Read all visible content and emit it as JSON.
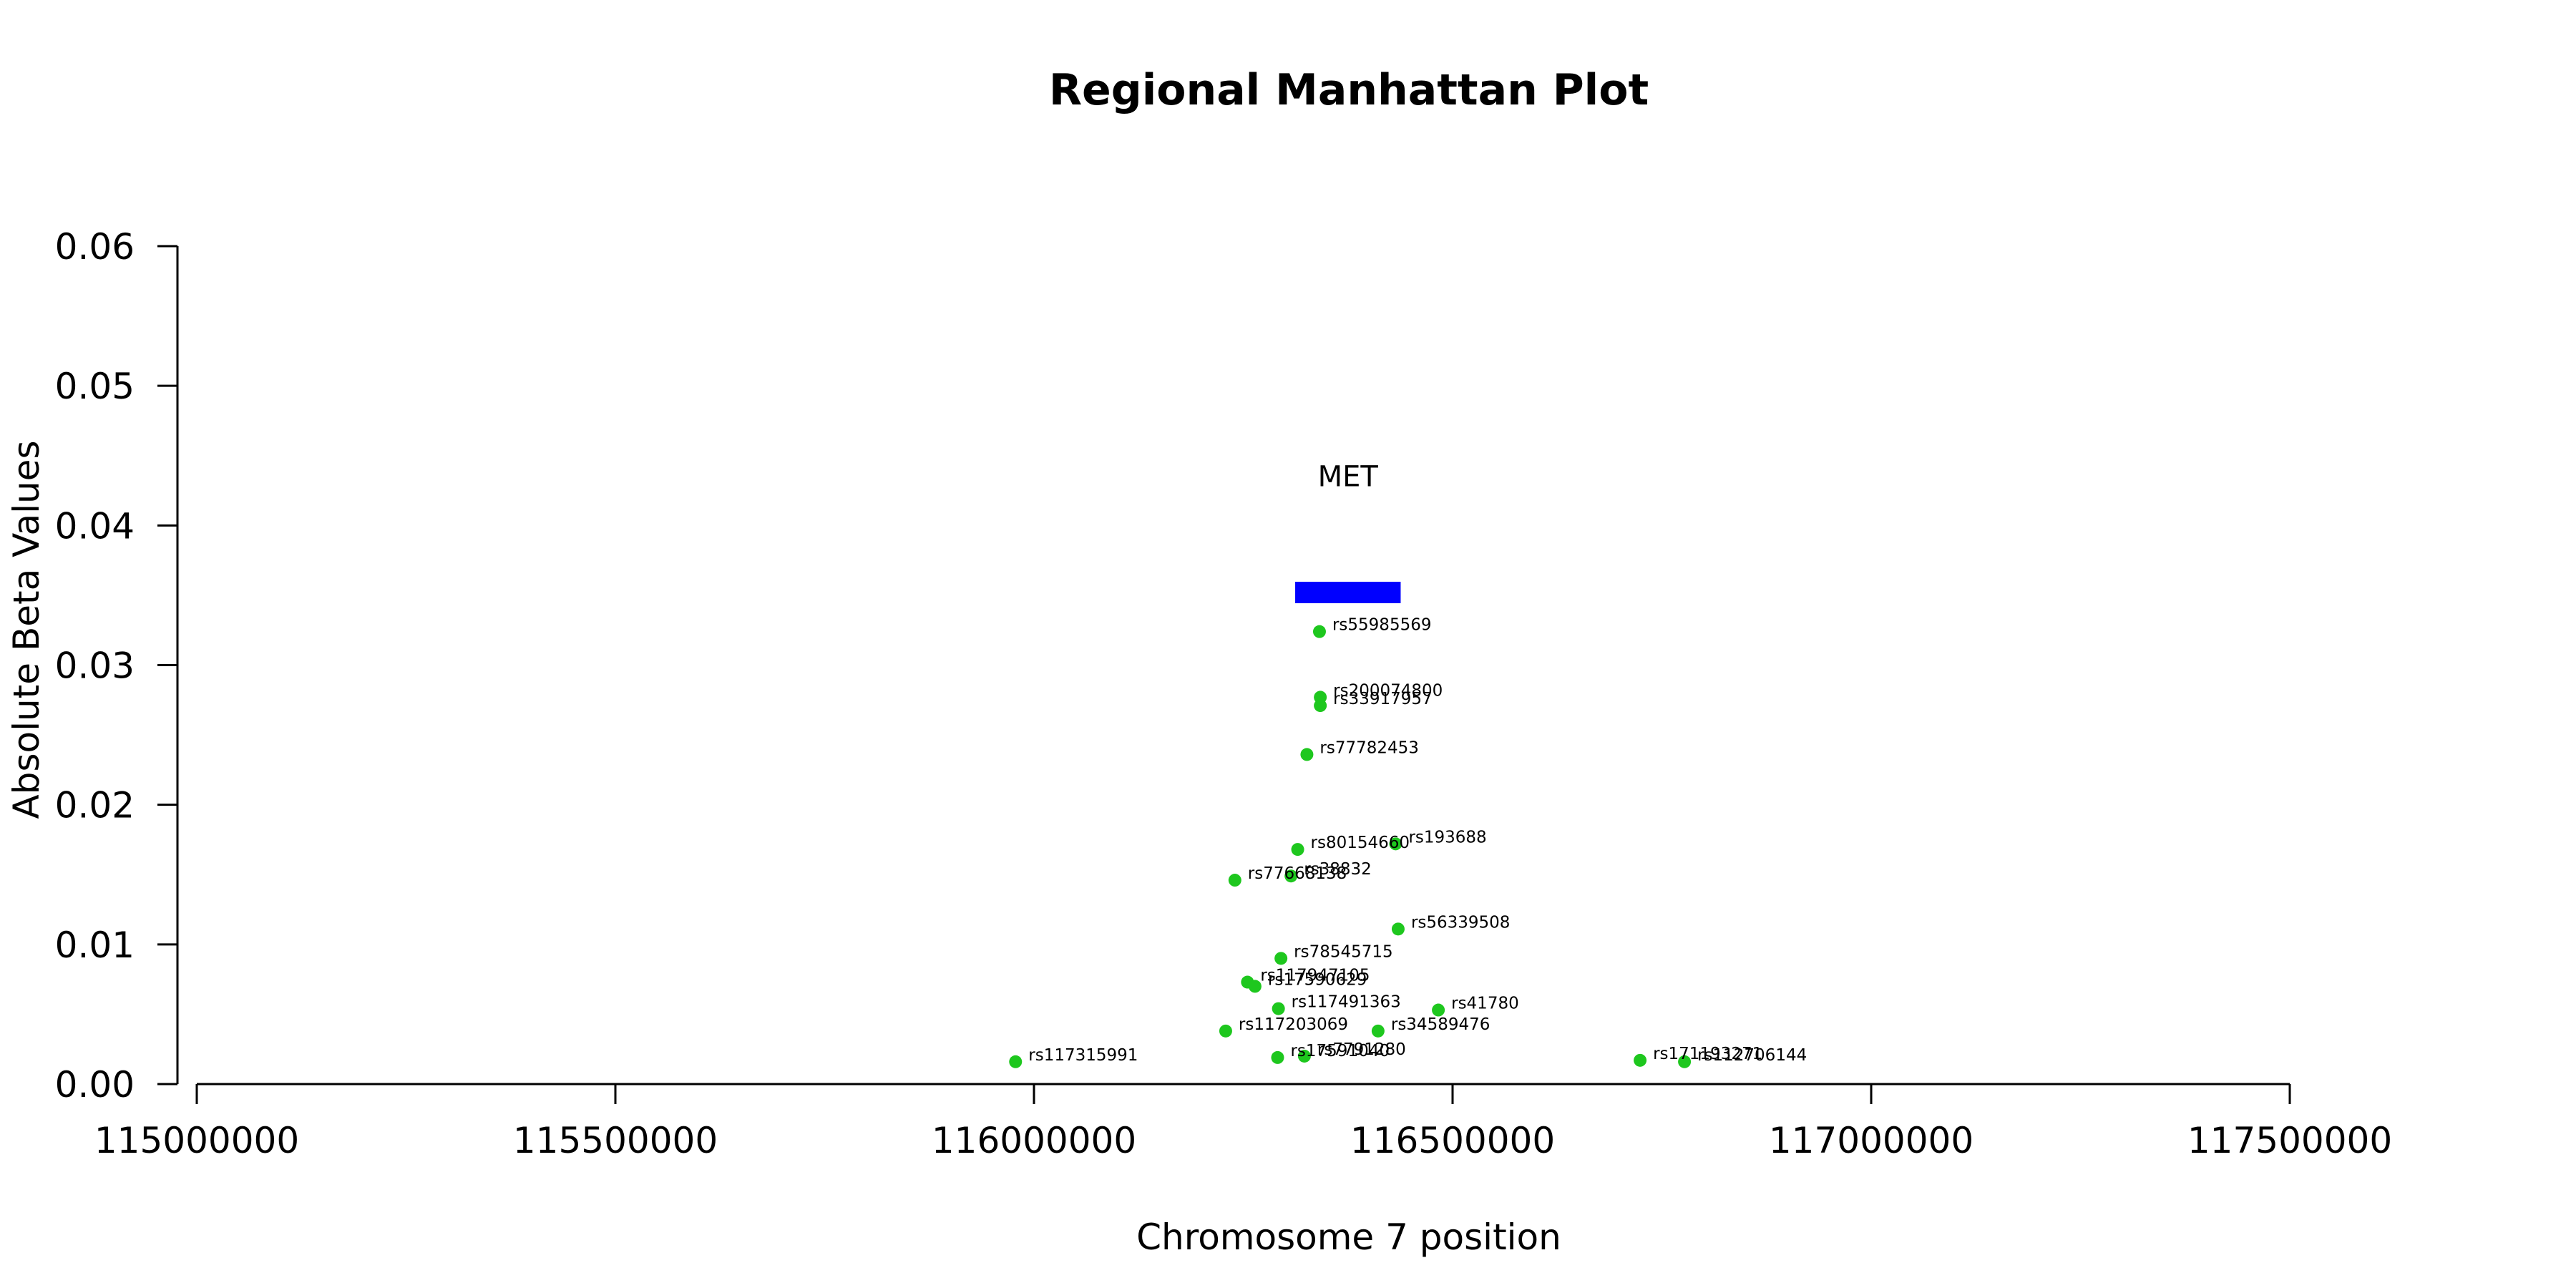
{
  "chart_data": {
    "type": "scatter",
    "title": "Regional Manhattan Plot",
    "xlabel": "Chromosome 7 position",
    "ylabel": "Absolute Beta Values",
    "xlim": [
      115000000,
      117500000
    ],
    "ylim": [
      0.0,
      0.06
    ],
    "x_ticks": [
      115000000,
      115500000,
      116000000,
      116500000,
      117000000,
      117500000
    ],
    "x_tick_labels": [
      "115000000",
      "115500000",
      "116000000",
      "116500000",
      "117000000",
      "117500000"
    ],
    "y_ticks": [
      0.0,
      0.01,
      0.02,
      0.03,
      0.04,
      0.05,
      0.06
    ],
    "y_tick_labels": [
      "0.00",
      "0.01",
      "0.02",
      "0.03",
      "0.04",
      "0.05",
      "0.06"
    ],
    "grid": false,
    "point_color": "#1ec71e",
    "gene": {
      "name": "MET",
      "start": 116312000,
      "end": 116438000,
      "y": 0.0352,
      "color": "#0000ff"
    },
    "points": [
      {
        "snp": "rs55985569",
        "x": 116341000,
        "y": 0.0324
      },
      {
        "snp": "rs200074800",
        "x": 116342000,
        "y": 0.0277
      },
      {
        "snp": "rs33917957",
        "x": 116342000,
        "y": 0.0271
      },
      {
        "snp": "rs77782453",
        "x": 116326000,
        "y": 0.0236
      },
      {
        "snp": "rs80154660",
        "x": 116315000,
        "y": 0.0168
      },
      {
        "snp": "rs193688",
        "x": 116432000,
        "y": 0.0172
      },
      {
        "snp": "rs77668138",
        "x": 116240000,
        "y": 0.0146
      },
      {
        "snp": "rs38832",
        "x": 116307000,
        "y": 0.0149
      },
      {
        "snp": "rs56339508",
        "x": 116435000,
        "y": 0.0111
      },
      {
        "snp": "rs78545715",
        "x": 116295000,
        "y": 0.009
      },
      {
        "snp": "rs117947105",
        "x": 116255000,
        "y": 0.0073
      },
      {
        "snp": "rs17590629",
        "x": 116264000,
        "y": 0.007
      },
      {
        "snp": "rs117491363",
        "x": 116292000,
        "y": 0.0054
      },
      {
        "snp": "rs41780",
        "x": 116483000,
        "y": 0.0053
      },
      {
        "snp": "rs117203069",
        "x": 116229000,
        "y": 0.0038
      },
      {
        "snp": "rs34589476",
        "x": 116411000,
        "y": 0.0038
      },
      {
        "snp": "rs117315991",
        "x": 115978000,
        "y": 0.0016
      },
      {
        "snp": "rs17591040",
        "x": 116291000,
        "y": 0.0019
      },
      {
        "snp": "rs7791280",
        "x": 116323000,
        "y": 0.002
      },
      {
        "snp": "rs171193271",
        "x": 116724000,
        "y": 0.0017
      },
      {
        "snp": "rs112706144",
        "x": 116777000,
        "y": 0.0016
      }
    ]
  }
}
